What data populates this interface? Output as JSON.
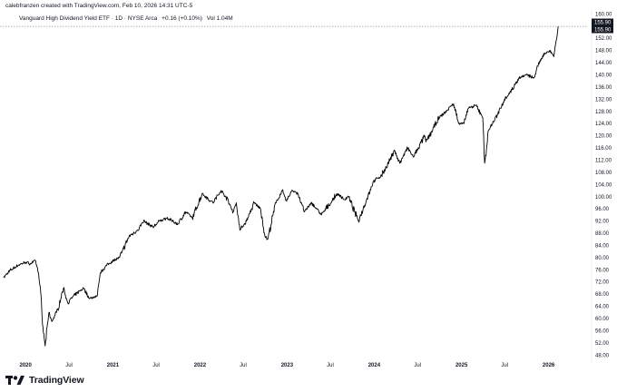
{
  "header": {
    "credit": "calebfranzen created with TradingView.com, Feb 10, 2026 14:31 UTC-5",
    "symbol": "Vanguard High Dividend Yield ETF · 1D · NYSE Arca",
    "change": "+0.16 (+0.10%)",
    "volume": "Vol 1.04M"
  },
  "price_tags": {
    "top": "155.90",
    "bottom": "155.90"
  },
  "brand": {
    "name": "TradingView",
    "logo_icon": "tradingview-logo-icon"
  },
  "colors": {
    "line": "#000000",
    "price_tag_bg": "#131722",
    "last_price_line": "#9598a1"
  },
  "chart_data": {
    "type": "line",
    "title": "Vanguard High Dividend Yield ETF · 1D · NYSE Arca",
    "xlabel": "",
    "ylabel": "",
    "ylim": [
      46,
      161
    ],
    "y_ticks": [
      160,
      152,
      148,
      144,
      140,
      136,
      132,
      128,
      124,
      120,
      116,
      112,
      108,
      104,
      100,
      96,
      92,
      88,
      84,
      80,
      76,
      72,
      68,
      64,
      60,
      56,
      52,
      48
    ],
    "y_tick_labels": [
      "160.00",
      "152.00",
      "148.00",
      "144.00",
      "140.00",
      "136.00",
      "132.00",
      "128.00",
      "124.00",
      "120.00",
      "116.00",
      "112.00",
      "108.00",
      "104.00",
      "100.00",
      "96.00",
      "92.00",
      "88.00",
      "84.00",
      "80.00",
      "76.00",
      "72.00",
      "68.00",
      "64.00",
      "60.00",
      "56.00",
      "52.00",
      "48.00"
    ],
    "x_ticks": [
      {
        "label": "2020",
        "date": "2020-01-01",
        "bold": true
      },
      {
        "label": "Jul",
        "date": "2020-07-01",
        "bold": false
      },
      {
        "label": "2021",
        "date": "2021-01-01",
        "bold": true
      },
      {
        "label": "Jul",
        "date": "2021-07-01",
        "bold": false
      },
      {
        "label": "2022",
        "date": "2022-01-01",
        "bold": true
      },
      {
        "label": "Jul",
        "date": "2022-07-01",
        "bold": false
      },
      {
        "label": "2023",
        "date": "2023-01-01",
        "bold": true
      },
      {
        "label": "Jul",
        "date": "2023-07-01",
        "bold": false
      },
      {
        "label": "2024",
        "date": "2024-01-01",
        "bold": true
      },
      {
        "label": "Jul",
        "date": "2024-07-01",
        "bold": false
      },
      {
        "label": "2025",
        "date": "2025-01-01",
        "bold": true
      },
      {
        "label": "Jul",
        "date": "2025-07-01",
        "bold": false
      },
      {
        "label": "2026",
        "date": "2026-01-01",
        "bold": true
      }
    ],
    "x_range": [
      "2019-10-01",
      "2026-06-15"
    ],
    "grid": false,
    "last_price": 155.9,
    "series": [
      {
        "name": "",
        "points": [
          [
            "2019-10-01",
            73.5
          ],
          [
            "2019-11-01",
            76.0
          ],
          [
            "2019-12-01",
            77.5
          ],
          [
            "2020-01-01",
            78.5
          ],
          [
            "2020-01-20",
            78.0
          ],
          [
            "2020-02-12",
            79.0
          ],
          [
            "2020-02-24",
            75.0
          ],
          [
            "2020-03-05",
            68.0
          ],
          [
            "2020-03-12",
            58.0
          ],
          [
            "2020-03-23",
            51.0
          ],
          [
            "2020-04-08",
            62.0
          ],
          [
            "2020-04-20",
            59.0
          ],
          [
            "2020-05-15",
            63.0
          ],
          [
            "2020-06-08",
            70.0
          ],
          [
            "2020-06-26",
            65.0
          ],
          [
            "2020-07-15",
            67.0
          ],
          [
            "2020-08-15",
            69.0
          ],
          [
            "2020-09-01",
            70.0
          ],
          [
            "2020-09-24",
            66.5
          ],
          [
            "2020-10-28",
            67.5
          ],
          [
            "2020-11-09",
            75.0
          ],
          [
            "2020-11-30",
            77.0
          ],
          [
            "2020-12-31",
            79.0
          ],
          [
            "2021-01-29",
            80.0
          ],
          [
            "2021-03-10",
            87.0
          ],
          [
            "2021-04-15",
            89.0
          ],
          [
            "2021-05-10",
            92.0
          ],
          [
            "2021-06-18",
            90.0
          ],
          [
            "2021-07-15",
            92.0
          ],
          [
            "2021-08-15",
            93.0
          ],
          [
            "2021-09-30",
            91.0
          ],
          [
            "2021-11-02",
            95.0
          ],
          [
            "2021-11-30",
            93.0
          ],
          [
            "2022-01-10",
            101.0
          ],
          [
            "2022-02-24",
            98.0
          ],
          [
            "2022-03-30",
            102.0
          ],
          [
            "2022-04-20",
            100.0
          ],
          [
            "2022-05-20",
            95.0
          ],
          [
            "2022-06-02",
            98.0
          ],
          [
            "2022-06-17",
            89.0
          ],
          [
            "2022-07-15",
            92.0
          ],
          [
            "2022-08-16",
            98.0
          ],
          [
            "2022-09-12",
            96.0
          ],
          [
            "2022-09-30",
            87.0
          ],
          [
            "2022-10-12",
            86.0
          ],
          [
            "2022-11-15",
            98.0
          ],
          [
            "2022-12-12",
            102.0
          ],
          [
            "2022-12-30",
            98.5
          ],
          [
            "2023-01-20",
            102.0
          ],
          [
            "2023-02-15",
            101.0
          ],
          [
            "2023-03-15",
            95.0
          ],
          [
            "2023-04-15",
            98.0
          ],
          [
            "2023-05-25",
            94.0
          ],
          [
            "2023-07-31",
            101.0
          ],
          [
            "2023-08-30",
            99.0
          ],
          [
            "2023-09-15",
            100.0
          ],
          [
            "2023-10-27",
            92.0
          ],
          [
            "2023-11-30",
            99.0
          ],
          [
            "2023-12-29",
            105.0
          ],
          [
            "2024-02-01",
            107.0
          ],
          [
            "2024-03-28",
            115.0
          ],
          [
            "2024-04-17",
            111.0
          ],
          [
            "2024-05-20",
            116.0
          ],
          [
            "2024-06-14",
            113.0
          ],
          [
            "2024-07-31",
            120.0
          ],
          [
            "2024-08-05",
            118.0
          ],
          [
            "2024-09-30",
            126.0
          ],
          [
            "2024-10-15",
            127.0
          ],
          [
            "2024-11-29",
            130.5
          ],
          [
            "2024-12-20",
            124.0
          ],
          [
            "2025-01-10",
            124.0
          ],
          [
            "2025-01-30",
            129.0
          ],
          [
            "2025-03-03",
            130.0
          ],
          [
            "2025-03-31",
            126.0
          ],
          [
            "2025-04-08",
            111.0
          ],
          [
            "2025-04-25",
            122.0
          ],
          [
            "2025-06-02",
            127.0
          ],
          [
            "2025-06-30",
            132.0
          ],
          [
            "2025-07-31",
            135.0
          ],
          [
            "2025-08-29",
            139.0
          ],
          [
            "2025-09-30",
            140.0
          ],
          [
            "2025-10-31",
            139.0
          ],
          [
            "2025-11-28",
            145.0
          ],
          [
            "2025-12-15",
            147.0
          ],
          [
            "2026-01-09",
            148.0
          ],
          [
            "2026-01-23",
            146.0
          ],
          [
            "2026-01-30",
            150.0
          ],
          [
            "2026-02-06",
            153.0
          ],
          [
            "2026-02-10",
            155.9
          ]
        ]
      }
    ]
  }
}
